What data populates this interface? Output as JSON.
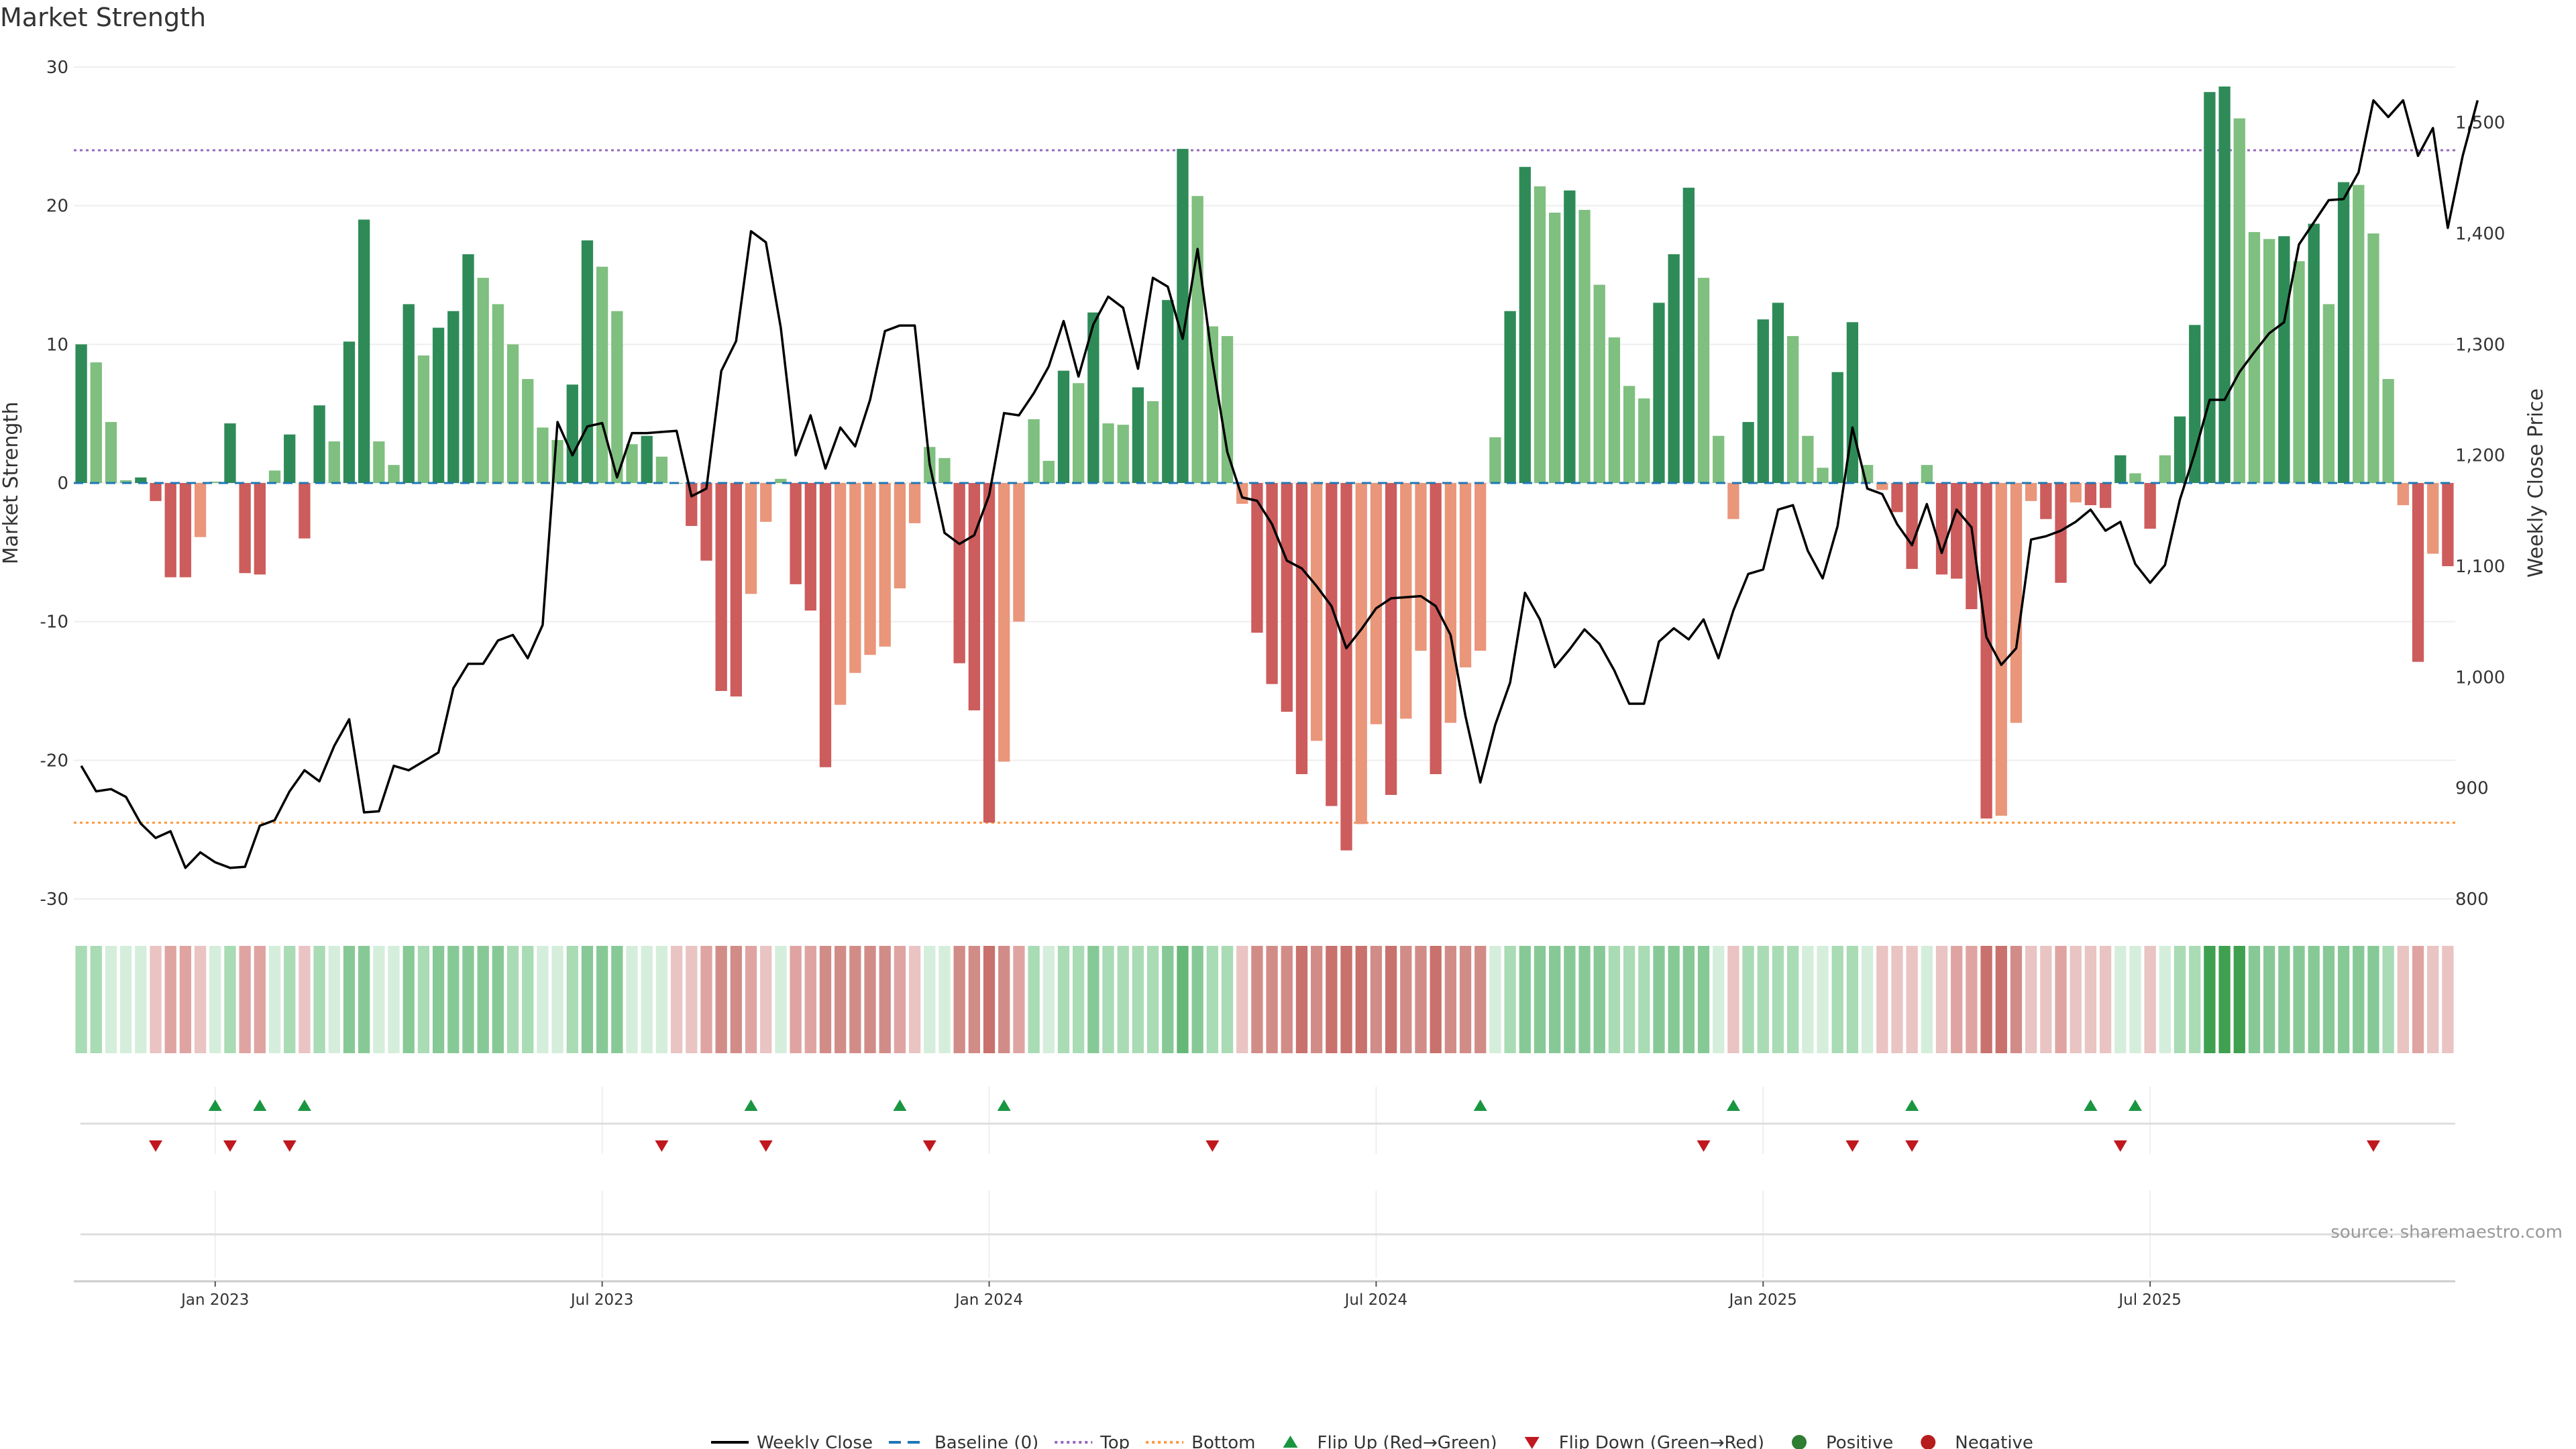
{
  "title": "Market Strength",
  "source_note": "source: sharemaestro.com",
  "colors": {
    "green_dark": "#2e8b57",
    "green_light": "#7fbf7f",
    "red_dark": "#cd5c5c",
    "red_light": "#e9967a",
    "close_line": "#000000",
    "baseline": "#1f77b4",
    "top": "#9467bd",
    "bottom": "#ff7f0e",
    "flip_up": "#1a9641",
    "flip_down": "#c0181e",
    "positive": "#2e7d32",
    "negative": "#b71c1c"
  },
  "chart_data": {
    "type": "bar",
    "title": "Market Strength",
    "ylabel": "Market Strength",
    "y2label": "Weekly Close Price",
    "ylim": [
      -30,
      30
    ],
    "y2lim": [
      800,
      1550
    ],
    "yticks": [
      -30,
      -20,
      -10,
      0,
      10,
      20,
      30
    ],
    "y2ticks": [
      800,
      900,
      1000,
      1100,
      1200,
      1300,
      1400,
      1500
    ],
    "y2tick_labels": [
      "800",
      "900",
      "1,000",
      "1,100",
      "1,200",
      "1,300",
      "1,400",
      "1,500"
    ],
    "top_threshold": 24,
    "bottom_threshold": -24.5,
    "xticks": [
      {
        "label": "Jan 2023",
        "index": 9
      },
      {
        "label": "Jul 2023",
        "index": 35
      },
      {
        "label": "Jan 2024",
        "index": 61
      },
      {
        "label": "Jul 2024",
        "index": 87
      },
      {
        "label": "Jan 2025",
        "index": 113
      },
      {
        "label": "Jul 2025",
        "index": 139
      }
    ],
    "strength": [
      10,
      8.7,
      4.4,
      0.2,
      0.4,
      -1.3,
      -6.8,
      -6.8,
      -3.9,
      0.1,
      4.3,
      -6.5,
      -6.6,
      0.9,
      3.5,
      -4,
      5.6,
      3,
      10.2,
      19,
      3,
      1.3,
      12.9,
      9.2,
      11.2,
      12.4,
      16.5,
      14.8,
      12.9,
      10,
      7.5,
      4,
      3.1,
      7.1,
      17.5,
      15.6,
      12.4,
      2.8,
      3.4,
      1.9,
      0,
      -3.1,
      -5.6,
      -15,
      -15.4,
      -8,
      -2.8,
      0.3,
      -7.3,
      -9.2,
      -20.5,
      -16,
      -13.7,
      -12.4,
      -11.8,
      -7.6,
      -2.9,
      2.6,
      1.8,
      -13,
      -16.4,
      -24.5,
      -20.1,
      -10,
      4.6,
      1.6,
      8.1,
      7.2,
      12.3,
      4.3,
      4.2,
      6.9,
      5.9,
      13.2,
      24.1,
      20.7,
      11.3,
      10.6,
      -1.5,
      -10.8,
      -14.5,
      -16.5,
      -21,
      -18.6,
      -23.3,
      -26.5,
      -24.6,
      -17.4,
      -22.5,
      -17,
      -12.1,
      -21,
      -17.3,
      -13.3,
      -12.1,
      3.3,
      12.4,
      22.8,
      21.4,
      19.5,
      21.1,
      19.7,
      14.3,
      10.5,
      7,
      6.1,
      13,
      16.5,
      21.3,
      14.8,
      3.4,
      -2.6,
      4.4,
      11.8,
      13,
      10.6,
      3.4,
      1.1,
      8,
      11.6,
      1.3,
      -0.5,
      -2.1,
      -6.2,
      1.3,
      -6.6,
      -6.9,
      -9.1,
      -24.2,
      -24,
      -17.3,
      -1.3,
      -2.6,
      -7.2,
      -1.4,
      -1.6,
      -1.8,
      2,
      0.7,
      -3.3,
      2,
      4.8,
      11.4,
      28.2,
      28.6,
      26.3,
      18.1,
      17.6,
      17.8,
      16,
      18.7,
      12.9,
      21.7,
      21.5,
      18,
      7.5,
      -1.6,
      -12.9,
      -5.1,
      -6
    ],
    "weekly_close": [
      [
        0,
        920
      ],
      [
        1,
        897
      ],
      [
        2,
        899
      ],
      [
        3,
        892
      ],
      [
        4,
        868
      ],
      [
        5,
        855
      ],
      [
        6,
        861
      ],
      [
        7,
        828
      ],
      [
        8,
        842
      ],
      [
        9,
        833
      ],
      [
        10,
        828
      ],
      [
        11,
        829
      ],
      [
        12,
        866
      ],
      [
        13,
        871
      ],
      [
        14,
        897
      ],
      [
        15,
        916
      ],
      [
        16,
        906
      ],
      [
        17,
        938
      ],
      [
        18,
        962
      ],
      [
        19,
        878
      ],
      [
        20,
        879
      ],
      [
        21,
        920
      ],
      [
        22,
        916
      ],
      [
        23,
        924
      ],
      [
        24,
        932
      ],
      [
        25,
        990
      ],
      [
        26,
        1012
      ],
      [
        27,
        1012
      ],
      [
        28,
        1033
      ],
      [
        29,
        1038
      ],
      [
        30,
        1017
      ],
      [
        31,
        1047
      ],
      [
        32,
        1230
      ],
      [
        33,
        1200
      ],
      [
        34,
        1226
      ],
      [
        35,
        1229
      ],
      [
        36,
        1180
      ],
      [
        37,
        1220
      ],
      [
        38,
        1220
      ],
      [
        39,
        1221
      ],
      [
        40,
        1222
      ],
      [
        41,
        1163
      ],
      [
        42,
        1170
      ],
      [
        43,
        1276
      ],
      [
        44,
        1303
      ],
      [
        45,
        1402
      ],
      [
        46,
        1392
      ],
      [
        47,
        1315
      ],
      [
        48,
        1200
      ],
      [
        49,
        1236
      ],
      [
        50,
        1188
      ],
      [
        51,
        1225
      ],
      [
        52,
        1208
      ],
      [
        53,
        1250
      ],
      [
        54,
        1312
      ],
      [
        55,
        1317
      ],
      [
        56,
        1317
      ],
      [
        57,
        1192
      ],
      [
        58,
        1130
      ],
      [
        59,
        1120
      ],
      [
        60,
        1128
      ],
      [
        61,
        1164
      ],
      [
        62,
        1238
      ],
      [
        63,
        1236
      ],
      [
        64,
        1256
      ],
      [
        65,
        1280
      ],
      [
        66,
        1321
      ],
      [
        67,
        1271
      ],
      [
        68,
        1318
      ],
      [
        69,
        1343
      ],
      [
        70,
        1333
      ],
      [
        71,
        1278
      ],
      [
        72,
        1360
      ],
      [
        73,
        1352
      ],
      [
        74,
        1305
      ],
      [
        75,
        1386
      ],
      [
        76,
        1285
      ],
      [
        77,
        1203
      ],
      [
        78,
        1162
      ],
      [
        79,
        1159
      ],
      [
        80,
        1138
      ],
      [
        81,
        1105
      ],
      [
        82,
        1098
      ],
      [
        83,
        1082
      ],
      [
        84,
        1064
      ],
      [
        85,
        1026
      ],
      [
        86,
        1043
      ],
      [
        87,
        1062
      ],
      [
        88,
        1071
      ],
      [
        89,
        1072
      ],
      [
        90,
        1073
      ],
      [
        91,
        1064
      ],
      [
        92,
        1038
      ],
      [
        93,
        965
      ],
      [
        94,
        905
      ],
      [
        95,
        957
      ],
      [
        96,
        995
      ],
      [
        97,
        1076
      ],
      [
        98,
        1052
      ],
      [
        99,
        1009
      ],
      [
        100,
        1025
      ],
      [
        101,
        1043
      ],
      [
        102,
        1030
      ],
      [
        103,
        1006
      ],
      [
        104,
        976
      ],
      [
        105,
        976
      ],
      [
        106,
        1032
      ],
      [
        107,
        1044
      ],
      [
        108,
        1034
      ],
      [
        109,
        1052
      ],
      [
        110,
        1017
      ],
      [
        111,
        1060
      ],
      [
        112,
        1093
      ],
      [
        113,
        1097
      ],
      [
        114,
        1151
      ],
      [
        115,
        1155
      ],
      [
        116,
        1114
      ],
      [
        117,
        1089
      ],
      [
        118,
        1136
      ],
      [
        119,
        1225
      ],
      [
        120,
        1170
      ],
      [
        121,
        1165
      ],
      [
        122,
        1138
      ],
      [
        123,
        1119
      ],
      [
        124,
        1156
      ],
      [
        125,
        1112
      ],
      [
        126,
        1151
      ],
      [
        127,
        1135
      ],
      [
        128,
        1036
      ],
      [
        129,
        1011
      ],
      [
        130,
        1026
      ],
      [
        131,
        1124
      ],
      [
        132,
        1127
      ],
      [
        133,
        1132
      ],
      [
        134,
        1140
      ],
      [
        135,
        1151
      ],
      [
        136,
        1132
      ],
      [
        137,
        1140
      ],
      [
        138,
        1102
      ],
      [
        139,
        1085
      ],
      [
        140,
        1101
      ],
      [
        141,
        1160
      ],
      [
        142,
        1202
      ],
      [
        143,
        1250
      ],
      [
        144,
        1250
      ],
      [
        145,
        1275
      ],
      [
        146,
        1293
      ],
      [
        147,
        1310
      ],
      [
        148,
        1320
      ],
      [
        149,
        1390
      ],
      [
        150,
        1410
      ],
      [
        151,
        1430
      ],
      [
        152,
        1431
      ],
      [
        153,
        1455
      ],
      [
        154,
        1520
      ],
      [
        155,
        1505
      ],
      [
        156,
        1520
      ],
      [
        157,
        1470
      ],
      [
        158,
        1495
      ],
      [
        159,
        1405
      ],
      [
        160,
        1470
      ],
      [
        161,
        1520
      ]
    ],
    "heat_levels": [
      2,
      2,
      1,
      1,
      1,
      -1,
      -2,
      -2,
      -1,
      1,
      2,
      -2,
      -2,
      1,
      2,
      -1,
      2,
      1,
      3,
      3,
      1,
      1,
      3,
      2,
      3,
      3,
      3,
      3,
      3,
      2,
      2,
      1,
      1,
      2,
      3,
      3,
      3,
      1,
      1,
      1,
      -1,
      -1,
      -2,
      -3,
      -3,
      -2,
      -1,
      1,
      -2,
      -2,
      -3,
      -3,
      -3,
      -3,
      -3,
      -2,
      -1,
      1,
      1,
      -3,
      -3,
      -4,
      -3,
      -2,
      2,
      1,
      2,
      2,
      3,
      2,
      2,
      2,
      2,
      3,
      4,
      3,
      2,
      2,
      -1,
      -3,
      -3,
      -3,
      -4,
      -3,
      -4,
      -4,
      -4,
      -3,
      -4,
      -3,
      -3,
      -4,
      -3,
      -3,
      -3,
      1,
      2,
      3,
      3,
      3,
      3,
      3,
      3,
      2,
      2,
      2,
      3,
      3,
      3,
      3,
      1,
      -1,
      2,
      2,
      2,
      2,
      1,
      1,
      2,
      2,
      1,
      -1,
      -1,
      -1,
      1,
      -1,
      -2,
      -2,
      -4,
      -4,
      -3,
      -1,
      -1,
      -2,
      -1,
      -1,
      -1,
      1,
      1,
      -1,
      1,
      2,
      2,
      5,
      5,
      5,
      3,
      3,
      3,
      3,
      3,
      3,
      3,
      3,
      3,
      2,
      -1,
      -2,
      -1,
      -1
    ],
    "flips_up": [
      9,
      12,
      15,
      45,
      55,
      62,
      94,
      111,
      123,
      135,
      138
    ],
    "flips_down": [
      5,
      10,
      14,
      39,
      46,
      57,
      76,
      109,
      119,
      123,
      137,
      154
    ],
    "legend": [
      {
        "key": "close",
        "label": "Weekly Close"
      },
      {
        "key": "baseline",
        "label": "Baseline (0)"
      },
      {
        "key": "top",
        "label": "Top"
      },
      {
        "key": "bottom",
        "label": "Bottom"
      },
      {
        "key": "flip_up",
        "label": "Flip Up (Red→Green)"
      },
      {
        "key": "flip_down",
        "label": "Flip Down (Green→Red)"
      },
      {
        "key": "positive",
        "label": "Positive"
      },
      {
        "key": "negative",
        "label": "Negative"
      }
    ]
  }
}
